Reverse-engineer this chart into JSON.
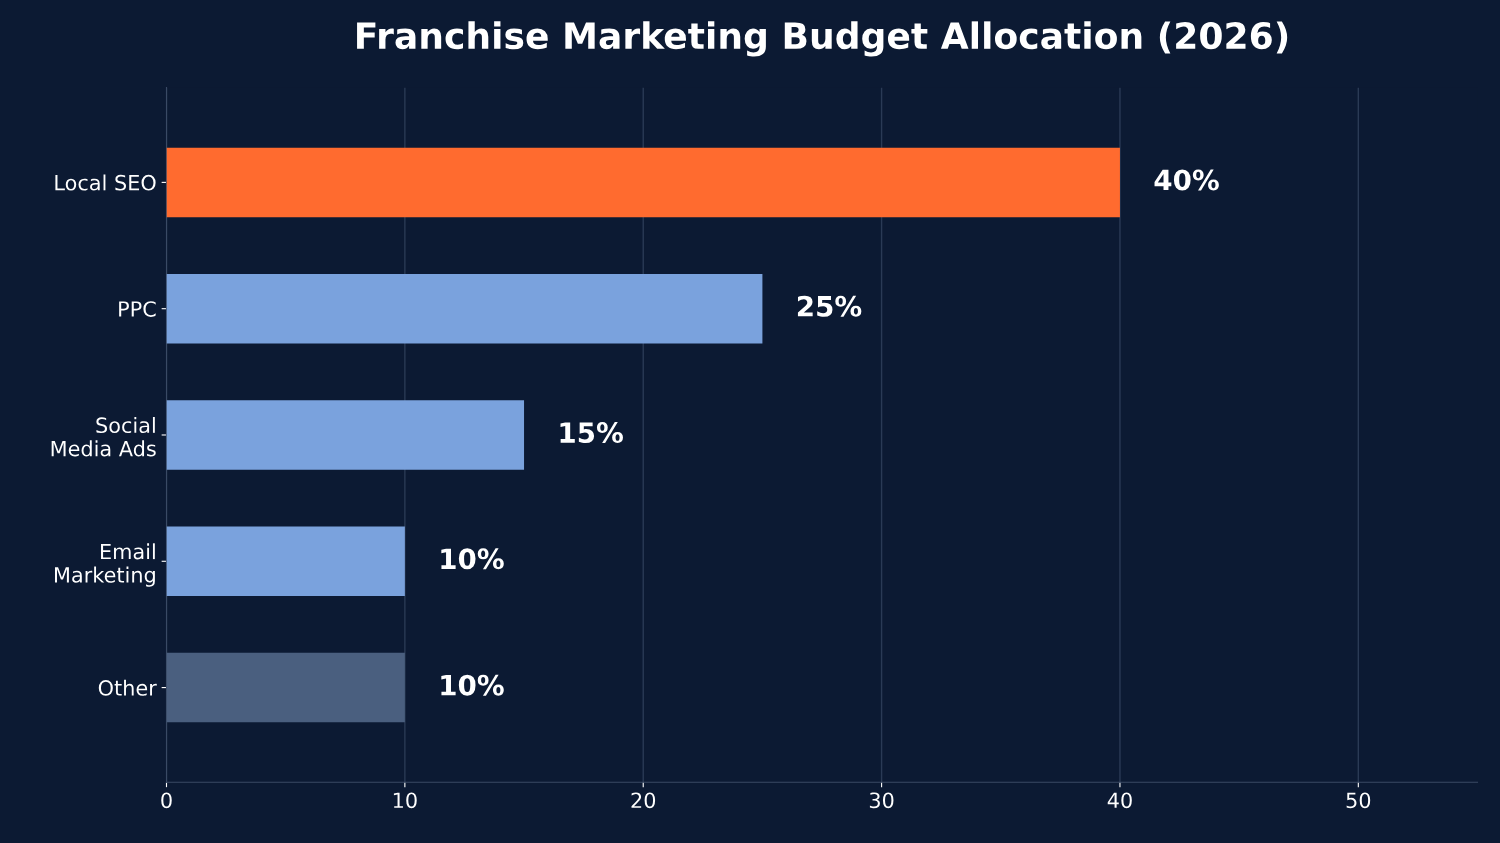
{
  "chart_data": {
    "type": "bar",
    "orientation": "horizontal",
    "title": "Franchise Marketing Budget Allocation (2026)",
    "categories": [
      "Local SEO",
      "PPC",
      "Social\nMedia Ads",
      "Email\nMarketing",
      "Other"
    ],
    "values": [
      40,
      25,
      15,
      10,
      10
    ],
    "colors": [
      "#ff6b2f",
      "#7aa2dd",
      "#7aa2dd",
      "#7aa2dd",
      "#4a5f7f"
    ],
    "value_labels": [
      "40%",
      "25%",
      "15%",
      "10%",
      "10%"
    ],
    "xlim": [
      0,
      55
    ],
    "xticks": [
      0,
      10,
      20,
      30,
      40,
      50
    ],
    "grid": "x",
    "legend": false
  }
}
